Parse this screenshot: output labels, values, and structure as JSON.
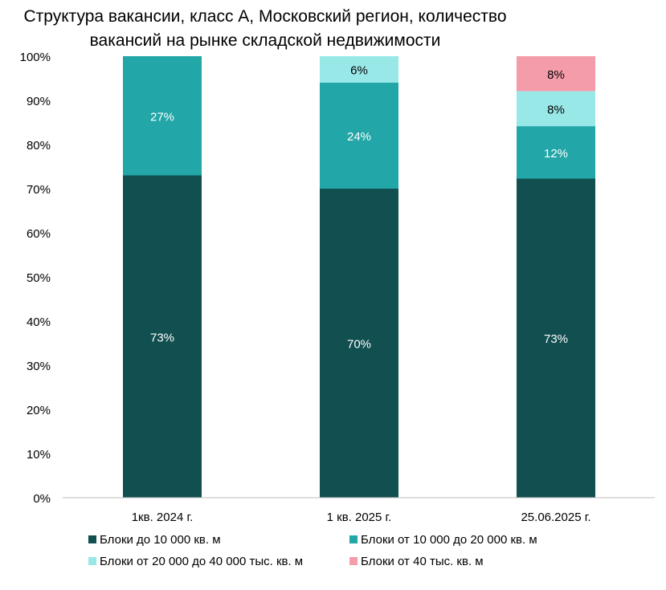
{
  "chart_data": {
    "type": "bar",
    "stacked": true,
    "title": [
      "Структура вакансии, класс А, Московский регион, количество",
      "вакансий на рынке складской недвижимости"
    ],
    "categories": [
      "1кв. 2024 г.",
      "1 кв. 2025 г.",
      "25.06.2025 г."
    ],
    "ylim": [
      0,
      100
    ],
    "yticks": [
      "0%",
      "10%",
      "20%",
      "30%",
      "40%",
      "50%",
      "60%",
      "70%",
      "80%",
      "90%",
      "100%"
    ],
    "legend_position": "bottom",
    "series": [
      {
        "name": "Блоки до 10 000 кв. м",
        "color": "#124f50",
        "label_color": "#ffffff",
        "values": [
          73,
          70,
          73
        ],
        "labels": [
          "73%",
          "70%",
          "73%"
        ]
      },
      {
        "name": "Блоки от 10 000 до 20 000 кв. м",
        "color": "#22a6a8",
        "label_color": "#ffffff",
        "values": [
          27,
          24,
          12
        ],
        "labels": [
          "27%",
          "24%",
          "12%"
        ]
      },
      {
        "name": "Блоки от 20 000 до 40 000 тыс. кв. м",
        "color": "#99e8e8",
        "label_color": "#000000",
        "values": [
          0,
          6,
          8
        ],
        "labels": [
          "",
          "6%",
          "8%"
        ]
      },
      {
        "name": "Блоки от 40 тыс. кв. м",
        "color": "#f49caa",
        "label_color": "#000000",
        "values": [
          0,
          0,
          8
        ],
        "labels": [
          "",
          "",
          "8%"
        ]
      }
    ]
  }
}
